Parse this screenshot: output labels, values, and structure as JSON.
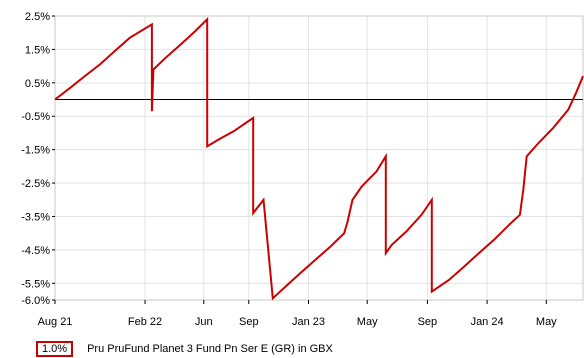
{
  "chart_data": {
    "type": "line",
    "title": "",
    "xlabel": "",
    "ylabel": "",
    "ylim": [
      -6.0,
      2.5
    ],
    "y_ticks": [
      "2.5%",
      "1.5%",
      "0.5%",
      "-0.5%",
      "-1.5%",
      "-2.5%",
      "-3.5%",
      "-4.5%",
      "-5.5%",
      "-6.0%"
    ],
    "y_tick_values": [
      2.5,
      1.5,
      0.5,
      -0.5,
      -1.5,
      -2.5,
      -3.5,
      -4.5,
      -5.5,
      -6.0
    ],
    "x_ticks": [
      "Aug 21",
      "Feb 22",
      "Jun",
      "Sep",
      "Jan 23",
      "May",
      "Sep",
      "Jan 24",
      "May"
    ],
    "x_tick_dates": [
      "2021-08-01",
      "2022-02-01",
      "2022-06-01",
      "2022-09-01",
      "2023-01-01",
      "2023-05-01",
      "2023-09-01",
      "2024-01-01",
      "2024-05-01"
    ],
    "x_range": [
      "2021-08-01",
      "2024-07-15"
    ],
    "grid": true,
    "zero_line": 0,
    "series": [
      {
        "name": "Pru PruFund Planet 3 Fund Pn Ser E (GR) in GBX",
        "color": "#cc0000",
        "points": [
          [
            "2021-08-01",
            0.0
          ],
          [
            "2021-09-01",
            0.35
          ],
          [
            "2021-10-01",
            0.7
          ],
          [
            "2021-11-01",
            1.05
          ],
          [
            "2021-12-01",
            1.45
          ],
          [
            "2022-01-01",
            1.85
          ],
          [
            "2022-02-15",
            2.25
          ],
          [
            "2022-02-15",
            -0.35
          ],
          [
            "2022-02-18",
            0.9
          ],
          [
            "2022-03-15",
            1.25
          ],
          [
            "2022-04-15",
            1.65
          ],
          [
            "2022-05-15",
            2.05
          ],
          [
            "2022-06-08",
            2.4
          ],
          [
            "2022-06-08",
            -1.4
          ],
          [
            "2022-07-01",
            -1.2
          ],
          [
            "2022-08-01",
            -0.95
          ],
          [
            "2022-09-10",
            -0.55
          ],
          [
            "2022-09-10",
            -3.4
          ],
          [
            "2022-10-01",
            -3.0
          ],
          [
            "2022-10-01",
            -3.0
          ],
          [
            "2022-10-20",
            -5.95
          ],
          [
            "2022-11-15",
            -5.6
          ],
          [
            "2022-12-15",
            -5.2
          ],
          [
            "2023-01-15",
            -4.8
          ],
          [
            "2023-02-15",
            -4.4
          ],
          [
            "2023-03-15",
            -4.0
          ],
          [
            "2023-03-22",
            -3.65
          ],
          [
            "2023-04-01",
            -3.0
          ],
          [
            "2023-04-20",
            -2.6
          ],
          [
            "2023-05-20",
            -2.15
          ],
          [
            "2023-06-08",
            -1.7
          ],
          [
            "2023-06-08",
            -4.6
          ],
          [
            "2023-06-20",
            -4.35
          ],
          [
            "2023-07-20",
            -3.95
          ],
          [
            "2023-08-20",
            -3.45
          ],
          [
            "2023-09-10",
            -3.0
          ],
          [
            "2023-09-10",
            -5.75
          ],
          [
            "2023-10-15",
            -5.4
          ],
          [
            "2023-11-15",
            -5.0
          ],
          [
            "2023-12-15",
            -4.6
          ],
          [
            "2024-01-15",
            -4.2
          ],
          [
            "2024-02-15",
            -3.75
          ],
          [
            "2024-03-08",
            -3.45
          ],
          [
            "2024-03-15",
            -2.7
          ],
          [
            "2024-03-22",
            -1.7
          ],
          [
            "2024-04-15",
            -1.3
          ],
          [
            "2024-05-15",
            -0.85
          ],
          [
            "2024-06-15",
            -0.3
          ],
          [
            "2024-07-01",
            0.2
          ],
          [
            "2024-07-15",
            0.7
          ]
        ]
      }
    ],
    "legend": {
      "placement": "bottom-left",
      "value_label": "1.0%",
      "series_label": "Pru PruFund Planet 3 Fund Pn Ser E (GR) in GBX"
    }
  }
}
